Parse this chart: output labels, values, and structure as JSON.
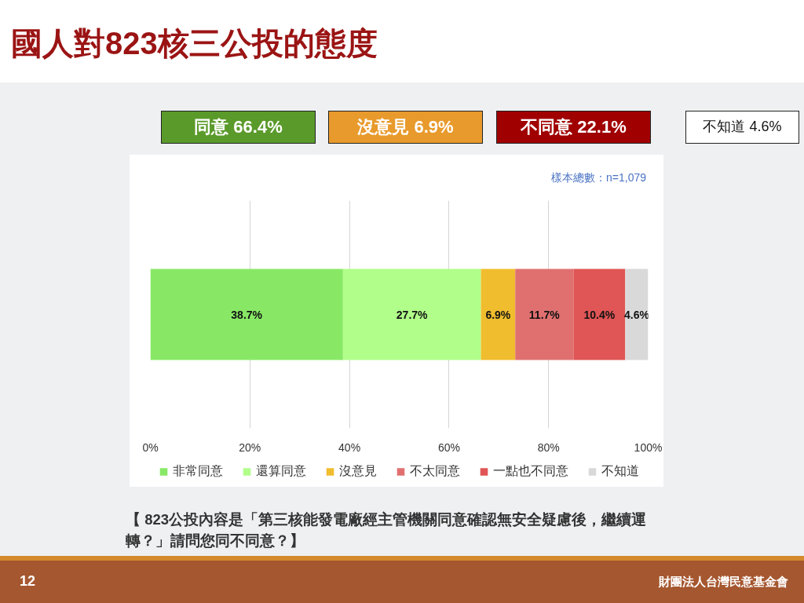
{
  "chart_data": {
    "type": "bar",
    "orientation": "horizontal",
    "stacked": true,
    "title": "國人對823核三公投的態度",
    "categories": [
      null
    ],
    "series": [
      {
        "name": "非常同意",
        "color": "#88e866",
        "values": [
          38.7
        ],
        "value_labels": [
          "38.7%"
        ]
      },
      {
        "name": "還算同意",
        "color": "#b1fe8a",
        "values": [
          27.7
        ],
        "value_labels": [
          "27.7%"
        ]
      },
      {
        "name": "沒意見",
        "color": "#f0bd2e",
        "values": [
          6.9
        ],
        "value_labels": [
          "6.9%"
        ]
      },
      {
        "name": "不太同意",
        "color": "#e07070",
        "values": [
          11.7
        ],
        "value_labels": [
          "11.7%"
        ]
      },
      {
        "name": "一點也不同意",
        "color": "#e05555",
        "values": [
          10.4
        ],
        "value_labels": [
          "10.4%"
        ]
      },
      {
        "name": "不知道",
        "color": "#d9d9d9",
        "values": [
          4.6
        ],
        "value_labels": [
          "4.6%"
        ]
      }
    ],
    "xlim": [
      0,
      100
    ],
    "xticks": [
      {
        "value": 0,
        "label": "0%"
      },
      {
        "value": 20,
        "label": "20%"
      },
      {
        "value": 40,
        "label": "40%"
      },
      {
        "value": 60,
        "label": "60%"
      },
      {
        "value": 80,
        "label": "80%"
      },
      {
        "value": 100,
        "label": "100%"
      }
    ],
    "grid": "x",
    "legend": "bottom",
    "tick_labels": "x",
    "annotations": [
      "同意 66.4%",
      "沒意見 6.9%",
      "不同意 22.1%",
      "不知道 4.6%",
      "樣本總數：n=1,079",
      "【 823公投內容是「第三核能發電廠經主管機關同意確認無安全疑慮後，繼續運轉？」請問您同不同意？】",
      "12",
      "財團法人台灣民意基金會"
    ]
  }
}
